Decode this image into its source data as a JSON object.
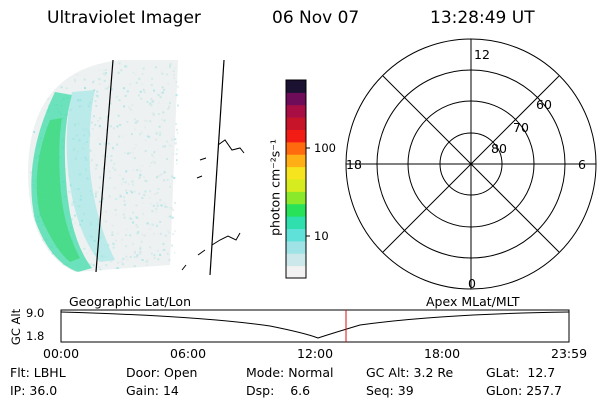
{
  "header": {
    "instrument": "Ultraviolet Imager",
    "date": "06 Nov 07",
    "time": "13:28:49 UT"
  },
  "colorbar": {
    "unit_label": "photon cm⁻²s⁻¹",
    "ticks": [
      "100",
      "10"
    ],
    "scale": "log",
    "colors": [
      "#f2f2f2",
      "#cde8ea",
      "#9fe3e6",
      "#5fe0d8",
      "#2fdfae",
      "#28e25a",
      "#8ae92a",
      "#d6ec1f",
      "#f6e51e",
      "#ffae16",
      "#ff6a0e",
      "#f21c14",
      "#c81428",
      "#a80e44",
      "#6e0c5a",
      "#1a1230"
    ]
  },
  "polar_plot": {
    "mlt_labels": {
      "top": "12",
      "left": "18",
      "right": "6",
      "bottom": "0"
    },
    "lat_labels": [
      "60",
      "70",
      "80"
    ]
  },
  "orbit": {
    "left_label": "Geographic Lat/Lon",
    "right_label": "Apex MLat/MLT",
    "y_axis_label": "GC Alt",
    "y_ticks": [
      "9.0",
      "1.8"
    ],
    "x_ticks": [
      "00:00",
      "06:00",
      "12:00",
      "18:00",
      "23:59"
    ],
    "marker_time": "13:28:49",
    "marker_color": "#dd1111"
  },
  "status": {
    "row1": [
      {
        "key": "Flt:",
        "value": "LBHL"
      },
      {
        "key": "Door:",
        "value": "Open"
      },
      {
        "key": "Mode:",
        "value": "Normal"
      },
      {
        "key": "GC Alt:",
        "value": "3.2 Re"
      },
      {
        "key": "GLat:",
        "value": "12.7"
      }
    ],
    "row2": [
      {
        "key": "IP:",
        "value": "36.0"
      },
      {
        "key": "Gain:",
        "value": "14"
      },
      {
        "key": "Dsp:",
        "value": "6.6"
      },
      {
        "key": "Seq:",
        "value": "39"
      },
      {
        "key": "GLon:",
        "value": "257.7"
      }
    ]
  }
}
